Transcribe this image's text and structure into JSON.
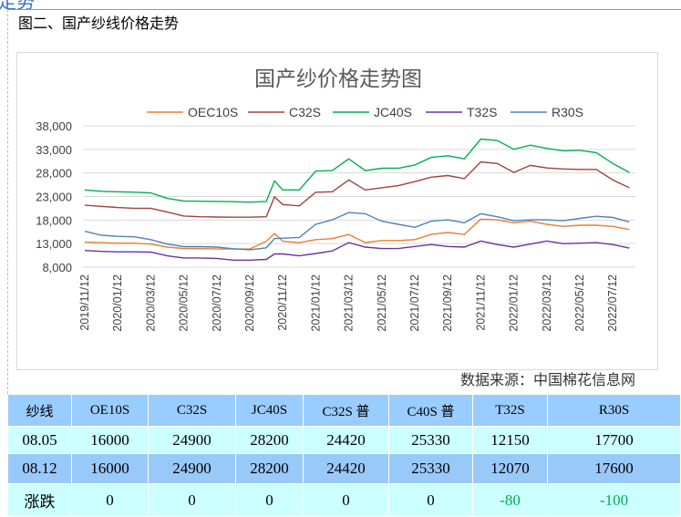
{
  "header_fragment": "走势",
  "figure_title": "图二、国产纱线价格走势",
  "source": "数据来源：中国棉花信息网",
  "chart_data": {
    "type": "line",
    "title": "国产纱价格走势图",
    "ylim": [
      8000,
      38000
    ],
    "yticks": [
      "8,000",
      "13,000",
      "18,000",
      "23,000",
      "28,000",
      "33,000",
      "38,000"
    ],
    "xticks": [
      "2019/11/12",
      "2020/01/12",
      "2020/03/12",
      "2020/05/12",
      "2020/07/12",
      "2020/09/12",
      "2020/11/12",
      "2021/01/12",
      "2021/03/12",
      "2021/05/12",
      "2021/07/12",
      "2021/09/12",
      "2021/11/12",
      "2022/01/12",
      "2022/03/12",
      "2022/05/12",
      "2022/07/12"
    ],
    "grid": true,
    "legend": "top",
    "x_months": [
      0,
      1,
      2,
      3,
      4,
      5,
      6,
      7,
      8,
      9,
      10,
      11,
      11.5,
      12,
      13,
      14,
      15,
      16,
      17,
      18,
      19,
      20,
      21,
      22,
      23,
      24,
      25,
      26,
      27,
      28,
      29,
      30,
      31,
      32,
      33
    ],
    "series": [
      {
        "name": "OEC10S",
        "color": "#ed7d31",
        "values": [
          13350,
          13200,
          13100,
          13100,
          12900,
          12250,
          11950,
          11950,
          11850,
          11850,
          11850,
          13500,
          15150,
          13500,
          13200,
          13850,
          14050,
          14950,
          13200,
          13650,
          13650,
          13850,
          14950,
          15350,
          14950,
          18200,
          18050,
          17400,
          17750,
          17100,
          16650,
          16900,
          16900,
          16650,
          16000
        ]
      },
      {
        "name": "C32S",
        "color": "#a5403d",
        "values": [
          21150,
          20900,
          20650,
          20500,
          20500,
          19700,
          18850,
          18700,
          18650,
          18600,
          18600,
          18700,
          22900,
          21300,
          21000,
          23900,
          24000,
          26500,
          24400,
          24850,
          25300,
          26150,
          27100,
          27450,
          26800,
          30350,
          30000,
          28100,
          29600,
          29050,
          28850,
          28750,
          28750,
          26500,
          24850
        ]
      },
      {
        "name": "JC40S",
        "color": "#00b050",
        "values": [
          24400,
          24100,
          24000,
          23900,
          23750,
          22600,
          22050,
          22000,
          21950,
          21900,
          21800,
          21950,
          26300,
          24400,
          24400,
          28400,
          28500,
          31000,
          28500,
          29000,
          29000,
          29700,
          31300,
          31650,
          31000,
          35200,
          34900,
          33000,
          33900,
          33200,
          32700,
          32800,
          32300,
          30000,
          28100
        ]
      },
      {
        "name": "T32S",
        "color": "#7030a0",
        "values": [
          11550,
          11350,
          11250,
          11250,
          11200,
          10400,
          9950,
          9950,
          9850,
          9500,
          9500,
          9650,
          10800,
          10800,
          10400,
          10900,
          11450,
          13200,
          12250,
          11950,
          11950,
          12400,
          12800,
          12400,
          12250,
          13550,
          12800,
          12250,
          12900,
          13550,
          13000,
          13100,
          13200,
          12800,
          12050
        ]
      },
      {
        "name": "R30S",
        "color": "#4f81bd",
        "values": [
          15600,
          14800,
          14550,
          14450,
          13850,
          12900,
          12350,
          12350,
          12250,
          11900,
          11700,
          12100,
          14050,
          14150,
          14300,
          17100,
          18050,
          19600,
          19350,
          17750,
          17100,
          16450,
          17750,
          18050,
          17400,
          19350,
          18700,
          17850,
          18050,
          18050,
          17850,
          18350,
          18800,
          18550,
          17600
        ]
      }
    ]
  },
  "table": {
    "header": [
      "纱线",
      "OE10S",
      "C32S",
      "JC40S",
      "C32S 普",
      "C40S 普",
      "T32S",
      "R30S"
    ],
    "rows": [
      [
        "08.05",
        "16000",
        "24900",
        "28200",
        "24420",
        "25330",
        "12150",
        "17700"
      ],
      [
        "08.12",
        "16000",
        "24900",
        "28200",
        "24420",
        "25330",
        "12070",
        "17600"
      ],
      [
        "涨跌",
        "0",
        "0",
        "0",
        "0",
        "0",
        "-80",
        "-100"
      ]
    ],
    "negative_color": "#00b050"
  }
}
